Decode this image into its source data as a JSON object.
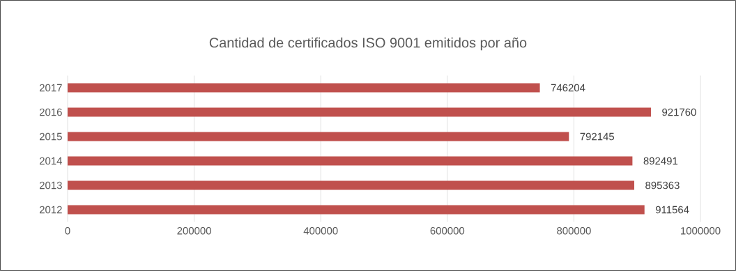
{
  "chart_data": {
    "type": "bar",
    "orientation": "horizontal",
    "title": "Cantidad de certificados ISO 9001 emitidos por año",
    "categories": [
      "2017",
      "2016",
      "2015",
      "2014",
      "2013",
      "2012"
    ],
    "values": [
      746204,
      921760,
      792145,
      892491,
      895363,
      911564
    ],
    "color": "#c0504d",
    "data_labels": true,
    "grid": "x",
    "xlim": [
      0,
      1000000
    ],
    "xticks": [
      0,
      200000,
      400000,
      600000,
      800000,
      1000000
    ]
  }
}
